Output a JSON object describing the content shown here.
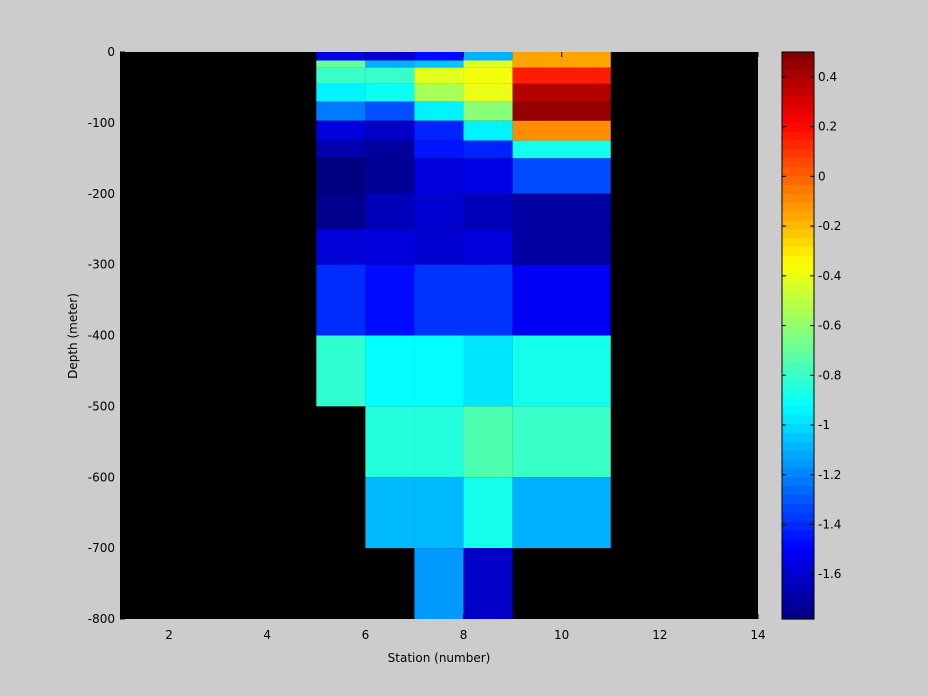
{
  "figure": {
    "background": "#cccccc",
    "axes_background": "#000000"
  },
  "chart_data": {
    "type": "heatmap",
    "xlabel": "Station (number)",
    "ylabel": "Depth (meter)",
    "xlim": [
      1,
      14
    ],
    "ylim": [
      -800,
      0
    ],
    "xticks": [
      2,
      4,
      6,
      8,
      10,
      12,
      14
    ],
    "yticks": [
      0,
      -100,
      -200,
      -300,
      -400,
      -500,
      -600,
      -700,
      -800
    ],
    "grid": false,
    "colormap": "jet",
    "clim": [
      -1.78,
      0.5
    ],
    "colorbar": {
      "location": "right",
      "ticks": [
        0.4,
        0.2,
        0,
        -0.2,
        -0.4,
        -0.6,
        -0.8,
        -1,
        -1.2,
        -1.4,
        -1.6
      ],
      "tick_labels": [
        "0.4",
        "0.2",
        "0",
        "-0.2",
        "-0.4",
        "-0.6",
        "-0.8",
        "-1",
        "-1.2",
        "-1.4",
        "-1.6"
      ]
    },
    "columns": [
      {
        "x": [
          5,
          6
        ],
        "cells": [
          {
            "depth": [
              0,
              -12
            ],
            "value": -1.55
          },
          {
            "depth": [
              -12,
              -22
            ],
            "value": -0.7
          },
          {
            "depth": [
              -22,
              -45
            ],
            "value": -0.8
          },
          {
            "depth": [
              -45,
              -70
            ],
            "value": -0.95
          },
          {
            "depth": [
              -70,
              -97
            ],
            "value": -1.22
          },
          {
            "depth": [
              -97,
              -125
            ],
            "value": -1.57
          },
          {
            "depth": [
              -125,
              -150
            ],
            "value": -1.68
          },
          {
            "depth": [
              -150,
              -200
            ],
            "value": -1.78
          },
          {
            "depth": [
              -200,
              -250
            ],
            "value": -1.75
          },
          {
            "depth": [
              -250,
              -300
            ],
            "value": -1.58
          },
          {
            "depth": [
              -300,
              -400
            ],
            "value": -1.4
          },
          {
            "depth": [
              -400,
              -500
            ],
            "value": -0.82
          }
        ]
      },
      {
        "x": [
          6,
          7
        ],
        "cells": [
          {
            "depth": [
              0,
              -12
            ],
            "value": -1.6
          },
          {
            "depth": [
              -12,
              -22
            ],
            "value": -1.1
          },
          {
            "depth": [
              -22,
              -45
            ],
            "value": -0.8
          },
          {
            "depth": [
              -45,
              -70
            ],
            "value": -0.9
          },
          {
            "depth": [
              -70,
              -97
            ],
            "value": -1.32
          },
          {
            "depth": [
              -97,
              -125
            ],
            "value": -1.62
          },
          {
            "depth": [
              -125,
              -150
            ],
            "value": -1.72
          },
          {
            "depth": [
              -150,
              -200
            ],
            "value": -1.73
          },
          {
            "depth": [
              -200,
              -250
            ],
            "value": -1.65
          },
          {
            "depth": [
              -250,
              -300
            ],
            "value": -1.57
          },
          {
            "depth": [
              -300,
              -400
            ],
            "value": -1.47
          },
          {
            "depth": [
              -400,
              -500
            ],
            "value": -0.92
          },
          {
            "depth": [
              -500,
              -600
            ],
            "value": -0.85
          },
          {
            "depth": [
              -600,
              -700
            ],
            "value": -1.08
          }
        ]
      },
      {
        "x": [
          7,
          8
        ],
        "cells": [
          {
            "depth": [
              0,
              -12
            ],
            "value": -1.48
          },
          {
            "depth": [
              -12,
              -22
            ],
            "value": -1.05
          },
          {
            "depth": [
              -22,
              -45
            ],
            "value": -0.42
          },
          {
            "depth": [
              -45,
              -70
            ],
            "value": -0.55
          },
          {
            "depth": [
              -70,
              -97
            ],
            "value": -0.95
          },
          {
            "depth": [
              -97,
              -125
            ],
            "value": -1.42
          },
          {
            "depth": [
              -125,
              -150
            ],
            "value": -1.45
          },
          {
            "depth": [
              -150,
              -200
            ],
            "value": -1.57
          },
          {
            "depth": [
              -200,
              -250
            ],
            "value": -1.6
          },
          {
            "depth": [
              -250,
              -300
            ],
            "value": -1.6
          },
          {
            "depth": [
              -300,
              -400
            ],
            "value": -1.38
          },
          {
            "depth": [
              -400,
              -500
            ],
            "value": -0.92
          },
          {
            "depth": [
              -500,
              -600
            ],
            "value": -0.85
          },
          {
            "depth": [
              -600,
              -700
            ],
            "value": -1.08
          },
          {
            "depth": [
              -700,
              -800
            ],
            "value": -1.15
          }
        ]
      },
      {
        "x": [
          8,
          9
        ],
        "cells": [
          {
            "depth": [
              0,
              -12
            ],
            "value": -1.1
          },
          {
            "depth": [
              -12,
              -22
            ],
            "value": -0.42
          },
          {
            "depth": [
              -22,
              -45
            ],
            "value": -0.38
          },
          {
            "depth": [
              -45,
              -70
            ],
            "value": -0.4
          },
          {
            "depth": [
              -70,
              -97
            ],
            "value": -0.62
          },
          {
            "depth": [
              -97,
              -125
            ],
            "value": -0.95
          },
          {
            "depth": [
              -125,
              -150
            ],
            "value": -1.42
          },
          {
            "depth": [
              -150,
              -200
            ],
            "value": -1.55
          },
          {
            "depth": [
              -200,
              -250
            ],
            "value": -1.65
          },
          {
            "depth": [
              -250,
              -300
            ],
            "value": -1.57
          },
          {
            "depth": [
              -300,
              -400
            ],
            "value": -1.38
          },
          {
            "depth": [
              -400,
              -500
            ],
            "value": -0.98
          },
          {
            "depth": [
              -500,
              -600
            ],
            "value": -0.75
          },
          {
            "depth": [
              -600,
              -700
            ],
            "value": -0.88
          },
          {
            "depth": [
              -700,
              -800
            ],
            "value": -1.62
          }
        ]
      },
      {
        "x": [
          9,
          11
        ],
        "cells": [
          {
            "depth": [
              0,
              -22
            ],
            "value": -0.15
          },
          {
            "depth": [
              -22,
              -45
            ],
            "value": 0.15
          },
          {
            "depth": [
              -45,
              -70
            ],
            "value": 0.38
          },
          {
            "depth": [
              -70,
              -97
            ],
            "value": 0.45
          },
          {
            "depth": [
              -97,
              -125
            ],
            "value": -0.1
          },
          {
            "depth": [
              -125,
              -150
            ],
            "value": -0.88
          },
          {
            "depth": [
              -150,
              -200
            ],
            "value": -1.33
          },
          {
            "depth": [
              -200,
              -250
            ],
            "value": -1.7
          },
          {
            "depth": [
              -250,
              -300
            ],
            "value": -1.7
          },
          {
            "depth": [
              -300,
              -400
            ],
            "value": -1.52
          },
          {
            "depth": [
              -400,
              -500
            ],
            "value": -0.88
          },
          {
            "depth": [
              -500,
              -600
            ],
            "value": -0.8
          },
          {
            "depth": [
              -600,
              -700
            ],
            "value": -1.1
          }
        ]
      }
    ]
  }
}
